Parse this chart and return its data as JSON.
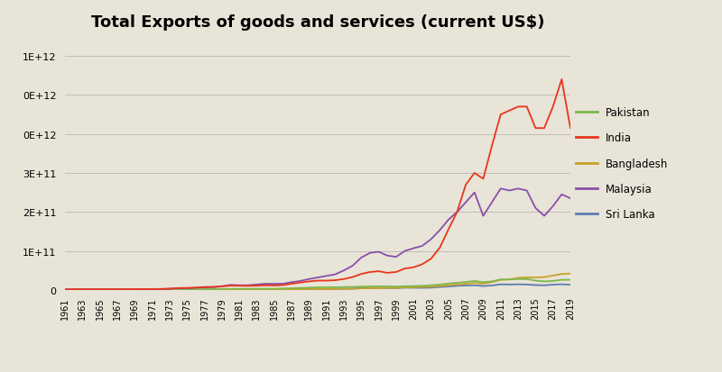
{
  "title": "Total Exports of goods and services (current US$)",
  "background_color": "#e8e4d8",
  "title_fontsize": 13,
  "years": [
    1961,
    1962,
    1963,
    1964,
    1965,
    1966,
    1967,
    1968,
    1969,
    1970,
    1971,
    1972,
    1973,
    1974,
    1975,
    1976,
    1977,
    1978,
    1979,
    1980,
    1981,
    1982,
    1983,
    1984,
    1985,
    1986,
    1987,
    1988,
    1989,
    1990,
    1991,
    1992,
    1993,
    1994,
    1995,
    1996,
    1997,
    1998,
    1999,
    2000,
    2001,
    2002,
    2003,
    2004,
    2005,
    2006,
    2007,
    2008,
    2009,
    2010,
    2011,
    2012,
    2013,
    2014,
    2015,
    2016,
    2017,
    2018,
    2019
  ],
  "pakistan": [
    1000000000.0,
    1100000000.0,
    1100000000.0,
    1100000000.0,
    1100000000.0,
    1000000000.0,
    1000000000.0,
    1000000000.0,
    1100000000.0,
    1100000000.0,
    800000000.0,
    900000000.0,
    1200000000.0,
    1500000000.0,
    1400000000.0,
    1500000000.0,
    1800000000.0,
    2000000000.0,
    2300000000.0,
    2800000000.0,
    3000000000.0,
    2800000000.0,
    3000000000.0,
    3100000000.0,
    3000000000.0,
    3700000000.0,
    4500000000.0,
    5100000000.0,
    5900000000.0,
    6800000000.0,
    7000000000.0,
    7000000000.0,
    7500000000.0,
    7900000000.0,
    8500000000.0,
    9000000000.0,
    9400000000.0,
    9200000000.0,
    8600000000.0,
    9500000000.0,
    10000000000.0,
    10500000000.0,
    12100000000.0,
    14000000000.0,
    16400000000.0,
    18600000000.0,
    20500000000.0,
    23000000000.0,
    20000000000.0,
    22000000000.0,
    27000000000.0,
    27000000000.0,
    28000000000.0,
    28000000000.0,
    24000000000.0,
    22000000000.0,
    23000000000.0,
    26000000000.0,
    26000000000.0
  ],
  "india": [
    1500000000.0,
    1600000000.0,
    1700000000.0,
    1800000000.0,
    1800000000.0,
    1900000000.0,
    1800000000.0,
    2000000000.0,
    2200000000.0,
    2300000000.0,
    2200000000.0,
    2600000000.0,
    3500000000.0,
    4900000000.0,
    5200000000.0,
    6100000000.0,
    7500000000.0,
    8000000000.0,
    9500000000.0,
    11000000000.0,
    11000000000.0,
    10500000000.0,
    11000000000.0,
    12000000000.0,
    11500000000.0,
    12500000000.0,
    16000000000.0,
    19000000000.0,
    22000000000.0,
    24000000000.0,
    24000000000.0,
    25000000000.0,
    28000000000.0,
    33000000000.0,
    41000000000.0,
    46000000000.0,
    48000000000.0,
    44000000000.0,
    46000000000.0,
    55000000000.0,
    58000000000.0,
    66000000000.0,
    80000000000.0,
    108000000000.0,
    155000000000.0,
    200000000000.0,
    270000000000.0,
    300000000000.0,
    285000000000.0,
    370000000000.0,
    450000000000.0,
    460000000000.0,
    470000000000.0,
    470000000000.0,
    415000000000.0,
    415000000000.0,
    470000000000.0,
    540000000000.0,
    415000000000.0
  ],
  "bangladesh": [
    300000000.0,
    300000000.0,
    300000000.0,
    300000000.0,
    300000000.0,
    300000000.0,
    300000000.0,
    300000000.0,
    300000000.0,
    400000000.0,
    300000000.0,
    400000000.0,
    500000000.0,
    600000000.0,
    800000000.0,
    800000000.0,
    800000000.0,
    900000000.0,
    1000000000.0,
    1200000000.0,
    1200000000.0,
    1100000000.0,
    1200000000.0,
    1300000000.0,
    1300000000.0,
    1200000000.0,
    1500000000.0,
    1700000000.0,
    2000000000.0,
    2200000000.0,
    2300000000.0,
    2500000000.0,
    2800000000.0,
    3200000000.0,
    4000000000.0,
    4500000000.0,
    5000000000.0,
    5200000000.0,
    5500000000.0,
    6500000000.0,
    6800000000.0,
    7500000000.0,
    8500000000.0,
    10000000000.0,
    12000000000.0,
    14000000000.0,
    16000000000.0,
    18000000000.0,
    16000000000.0,
    20000000000.0,
    26000000000.0,
    27000000000.0,
    31000000000.0,
    32000000000.0,
    32000000000.0,
    33000000000.0,
    37000000000.0,
    41000000000.0,
    42000000000.0
  ],
  "malaysia": [
    1500000000.0,
    1600000000.0,
    1700000000.0,
    1700000000.0,
    1800000000.0,
    1800000000.0,
    1800000000.0,
    1900000000.0,
    2000000000.0,
    2100000000.0,
    2000000000.0,
    2200000000.0,
    3000000000.0,
    4500000000.0,
    4500000000.0,
    5500000000.0,
    6500000000.0,
    7000000000.0,
    9000000000.0,
    13000000000.0,
    12000000000.0,
    12000000000.0,
    14000000000.0,
    16000000000.0,
    16000000000.0,
    16000000000.0,
    20000000000.0,
    23000000000.0,
    28000000000.0,
    32000000000.0,
    36000000000.0,
    40000000000.0,
    50000000000.0,
    62000000000.0,
    83000000000.0,
    95000000000.0,
    98000000000.0,
    88000000000.0,
    85000000000.0,
    100000000000.0,
    107000000000.0,
    113000000000.0,
    130000000000.0,
    153000000000.0,
    180000000000.0,
    200000000000.0,
    225000000000.0,
    250000000000.0,
    190000000000.0,
    225000000000.0,
    260000000000.0,
    255000000000.0,
    260000000000.0,
    255000000000.0,
    210000000000.0,
    190000000000.0,
    215000000000.0,
    245000000000.0,
    235000000000.0
  ],
  "srilanka": [
    400000000.0,
    400000000.0,
    400000000.0,
    400000000.0,
    400000000.0,
    400000000.0,
    400000000.0,
    400000000.0,
    400000000.0,
    400000000.0,
    400000000.0,
    400000000.0,
    500000000.0,
    600000000.0,
    600000000.0,
    700000000.0,
    700000000.0,
    800000000.0,
    900000000.0,
    1100000000.0,
    1100000000.0,
    1100000000.0,
    1200000000.0,
    1300000000.0,
    1400000000.0,
    1200000000.0,
    1500000000.0,
    1800000000.0,
    2000000000.0,
    2100000000.0,
    2400000000.0,
    2600000000.0,
    3000000000.0,
    3400000000.0,
    4500000000.0,
    5000000000.0,
    5500000000.0,
    5000000000.0,
    5000000000.0,
    5800000000.0,
    5500000000.0,
    5500000000.0,
    6000000000.0,
    7500000000.0,
    9000000000.0,
    10500000000.0,
    11500000000.0,
    12000000000.0,
    10000000000.0,
    11500000000.0,
    14500000000.0,
    14000000000.0,
    14500000000.0,
    14000000000.0,
    12500000000.0,
    12000000000.0,
    13500000000.0,
    14500000000.0,
    13500000000.0
  ],
  "colors": {
    "pakistan": "#7db84a",
    "india": "#e8341c",
    "bangladesh": "#c9a227",
    "malaysia": "#8b4fa8",
    "srilanka": "#5b7db1"
  },
  "ylim": [
    0,
    650000000000.0
  ],
  "yticks": [
    0,
    100000000000.0,
    200000000000.0,
    300000000000.0,
    400000000000.0,
    500000000000.0,
    600000000000.0
  ],
  "legend_labels": [
    "Pakistan",
    "India",
    "Bangladesh",
    "Malaysia",
    "Sri Lanka"
  ]
}
